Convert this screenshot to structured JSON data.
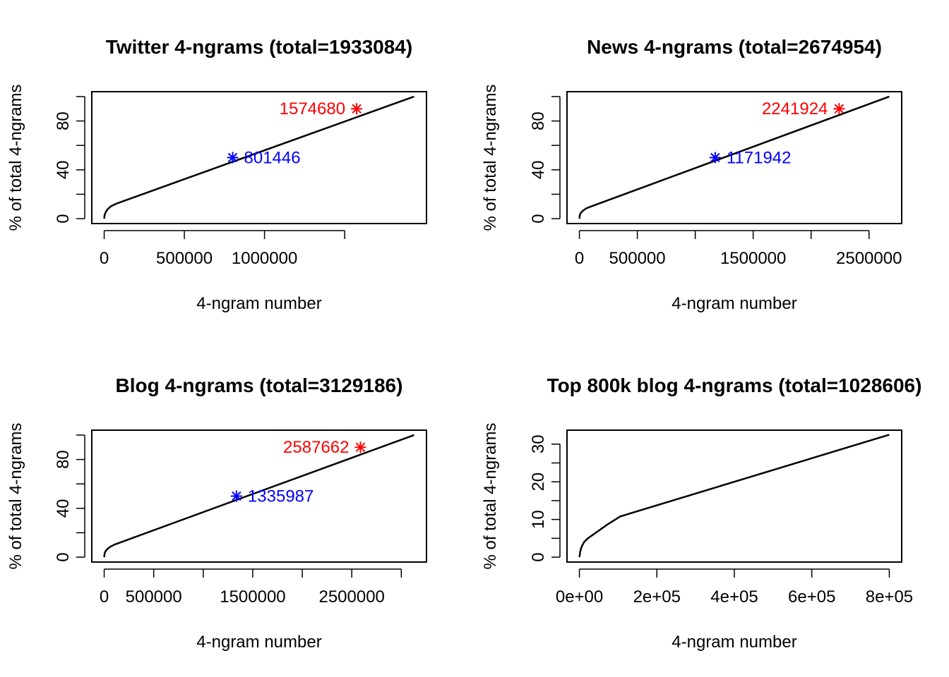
{
  "chart_data": [
    {
      "type": "line",
      "title": "Twitter 4-ngrams (total=1933084)",
      "xlabel": "4-ngram number",
      "ylabel": "% of total 4-ngrams",
      "xlim": [
        -77323,
        2010407
      ],
      "ylim": [
        -4,
        104
      ],
      "xticks": [
        0,
        500000,
        1000000,
        1500000
      ],
      "xtick_labels": [
        "0",
        "500000",
        "1000000",
        ""
      ],
      "yticks": [
        0,
        20,
        40,
        60,
        80,
        100
      ],
      "ytick_labels": [
        "0",
        "",
        "40",
        "",
        "80",
        ""
      ],
      "series": [
        {
          "x": [
            0,
            2000,
            8000,
            20000,
            40000,
            80000,
            1933084
          ],
          "y": [
            0,
            2.5,
            5,
            7.5,
            10,
            12.5,
            100
          ]
        }
      ],
      "markers": [
        {
          "x": 801446,
          "y": 50,
          "label": "801446",
          "color": "#0000ff",
          "label_side": "right"
        },
        {
          "x": 1574680,
          "y": 90,
          "label": "1574680",
          "color": "#ff0000",
          "label_side": "left"
        }
      ]
    },
    {
      "type": "line",
      "title": "News 4-ngrams (total=2674954)",
      "xlabel": "4-ngram number",
      "ylabel": "% of total 4-ngrams",
      "xlim": [
        -107000,
        2781954
      ],
      "ylim": [
        -4,
        104
      ],
      "xticks": [
        0,
        500000,
        1000000,
        1500000,
        2000000,
        2500000
      ],
      "xtick_labels": [
        "0",
        "500000",
        "",
        "1500000",
        "",
        "2500000"
      ],
      "yticks": [
        0,
        20,
        40,
        60,
        80,
        100
      ],
      "ytick_labels": [
        "0",
        "",
        "40",
        "",
        "80",
        ""
      ],
      "series": [
        {
          "x": [
            0,
            3000,
            10000,
            30000,
            60000,
            100000,
            2674954
          ],
          "y": [
            0,
            2.5,
            4.5,
            6.5,
            8.5,
            10,
            100
          ]
        }
      ],
      "markers": [
        {
          "x": 1171942,
          "y": 50,
          "label": "1171942",
          "color": "#0000ff",
          "label_side": "right"
        },
        {
          "x": 2241924,
          "y": 90,
          "label": "2241924",
          "color": "#ff0000",
          "label_side": "left"
        }
      ]
    },
    {
      "type": "line",
      "title": "Blog 4-ngrams (total=3129186)",
      "xlabel": "4-ngram number",
      "ylabel": "% of total 4-ngrams",
      "xlim": [
        -125167,
        3254353
      ],
      "ylim": [
        -4,
        104
      ],
      "xticks": [
        0,
        500000,
        1000000,
        1500000,
        2000000,
        2500000,
        3000000
      ],
      "xtick_labels": [
        "0",
        "500000",
        "",
        "1500000",
        "",
        "2500000",
        ""
      ],
      "yticks": [
        0,
        20,
        40,
        60,
        80,
        100
      ],
      "ytick_labels": [
        "0",
        "",
        "40",
        "",
        "80",
        ""
      ],
      "series": [
        {
          "x": [
            0,
            3000,
            10000,
            30000,
            60000,
            110000,
            3129186
          ],
          "y": [
            0,
            2.5,
            4.5,
            6.5,
            8.5,
            10.5,
            100
          ]
        }
      ],
      "markers": [
        {
          "x": 1335987,
          "y": 50,
          "label": "1335987",
          "color": "#0000ff",
          "label_side": "right"
        },
        {
          "x": 2587662,
          "y": 90,
          "label": "2587662",
          "color": "#ff0000",
          "label_side": "left"
        }
      ]
    },
    {
      "type": "line",
      "title": "Top 800k blog 4-ngrams (total=1028606)",
      "xlabel": "4-ngram number",
      "ylabel": "% of total 4-ngrams",
      "xlim": [
        -32000,
        832000
      ],
      "ylim": [
        -1.3,
        33.7
      ],
      "xticks": [
        0,
        200000,
        400000,
        600000,
        800000
      ],
      "xtick_labels": [
        "0e+00",
        "2e+05",
        "4e+05",
        "6e+05",
        "8e+05"
      ],
      "yticks": [
        0,
        5,
        10,
        15,
        20,
        25,
        30
      ],
      "ytick_labels": [
        "0",
        "",
        "10",
        "",
        "20",
        "",
        "30"
      ],
      "series": [
        {
          "x": [
            0,
            2000,
            6000,
            12000,
            22000,
            40000,
            70000,
            105000,
            800000
          ],
          "y": [
            0,
            1.5,
            2.8,
            4,
            5,
            6.3,
            8.5,
            10.8,
            32.5
          ]
        }
      ],
      "markers": []
    }
  ]
}
